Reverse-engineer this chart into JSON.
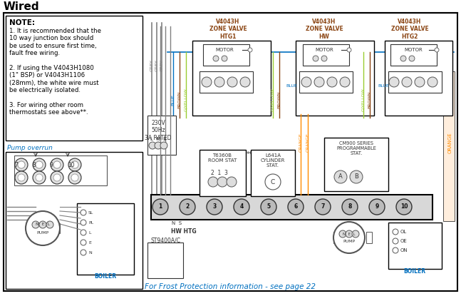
{
  "title": "Wired",
  "title_color": "#000000",
  "title_fontsize": 11,
  "bg_color": "#ffffff",
  "note_title": "NOTE:",
  "note_lines": [
    "1. It is recommended that the",
    "10 way junction box should",
    "be used to ensure first time,",
    "fault free wiring.",
    "",
    "2. If using the V4043H1080",
    "(1\" BSP) or V4043H1106",
    "(28mm), the white wire must",
    "be electrically isolated.",
    "",
    "3. For wiring other room",
    "thermostats see above**."
  ],
  "pump_overrun_label": "Pump overrun",
  "footer_text": "For Frost Protection information - see page 22",
  "footer_color": "#0070C0",
  "zone_valve_color": "#8B4513",
  "mains_label": "230V\n50Hz\n3A RATED",
  "boiler_label": "BOILER",
  "pump_label": "PUMP",
  "motor_label": "MOTOR",
  "hw_htg_label": "HW HTG",
  "st9400_label": "ST9400A/C",
  "t6360b_label": "T6360B\nROOM STAT",
  "l641a_label": "L641A\nCYLINDER\nSTAT.",
  "cm900_label": "CM900 SERIES\nPROGRAMMABLE\nSTAT.",
  "grey": "#808080",
  "blue": "#0070C0",
  "brown": "#8B4513",
  "gyellow": "#9ACD32",
  "orange": "#FF8C00",
  "text_blue": "#0070C0",
  "text_brown": "#8B4513"
}
